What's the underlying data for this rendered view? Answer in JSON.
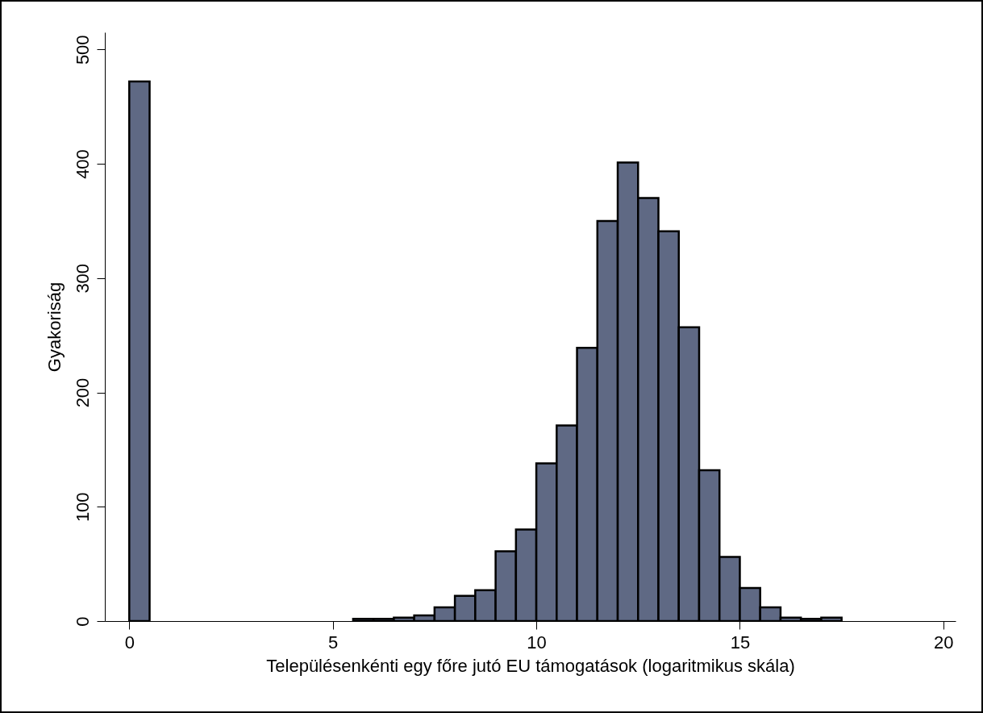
{
  "chart_data": {
    "type": "histogram",
    "xlabel": "Településenkénti egy főre jutó EU támogatások (logaritmikus skála)",
    "ylabel": "Gyakoriság",
    "bins": [
      0,
      0.5,
      1,
      1.5,
      2,
      2.5,
      3,
      3.5,
      4,
      4.5,
      5,
      5.5,
      6,
      6.5,
      7,
      7.5,
      8,
      8.5,
      9,
      9.5,
      10,
      10.5,
      11,
      11.5,
      12,
      12.5,
      13,
      13.5,
      14,
      14.5,
      15,
      15.5,
      16,
      16.5,
      17,
      17.5
    ],
    "values": [
      472,
      0,
      0,
      0,
      0,
      0,
      0,
      0,
      0,
      0,
      0,
      2,
      2,
      3,
      5,
      12,
      22,
      27,
      61,
      80,
      138,
      171,
      239,
      350,
      401,
      370,
      341,
      257,
      132,
      56,
      29,
      12,
      3,
      2,
      3
    ],
    "color": "#5f6984",
    "xlim": [
      -0.6,
      20.3
    ],
    "xticks": [
      0,
      5,
      10,
      15,
      20
    ],
    "ylim": [
      0,
      515
    ],
    "yticks": [
      0,
      100,
      200,
      300,
      400,
      500
    ],
    "grid": false
  }
}
